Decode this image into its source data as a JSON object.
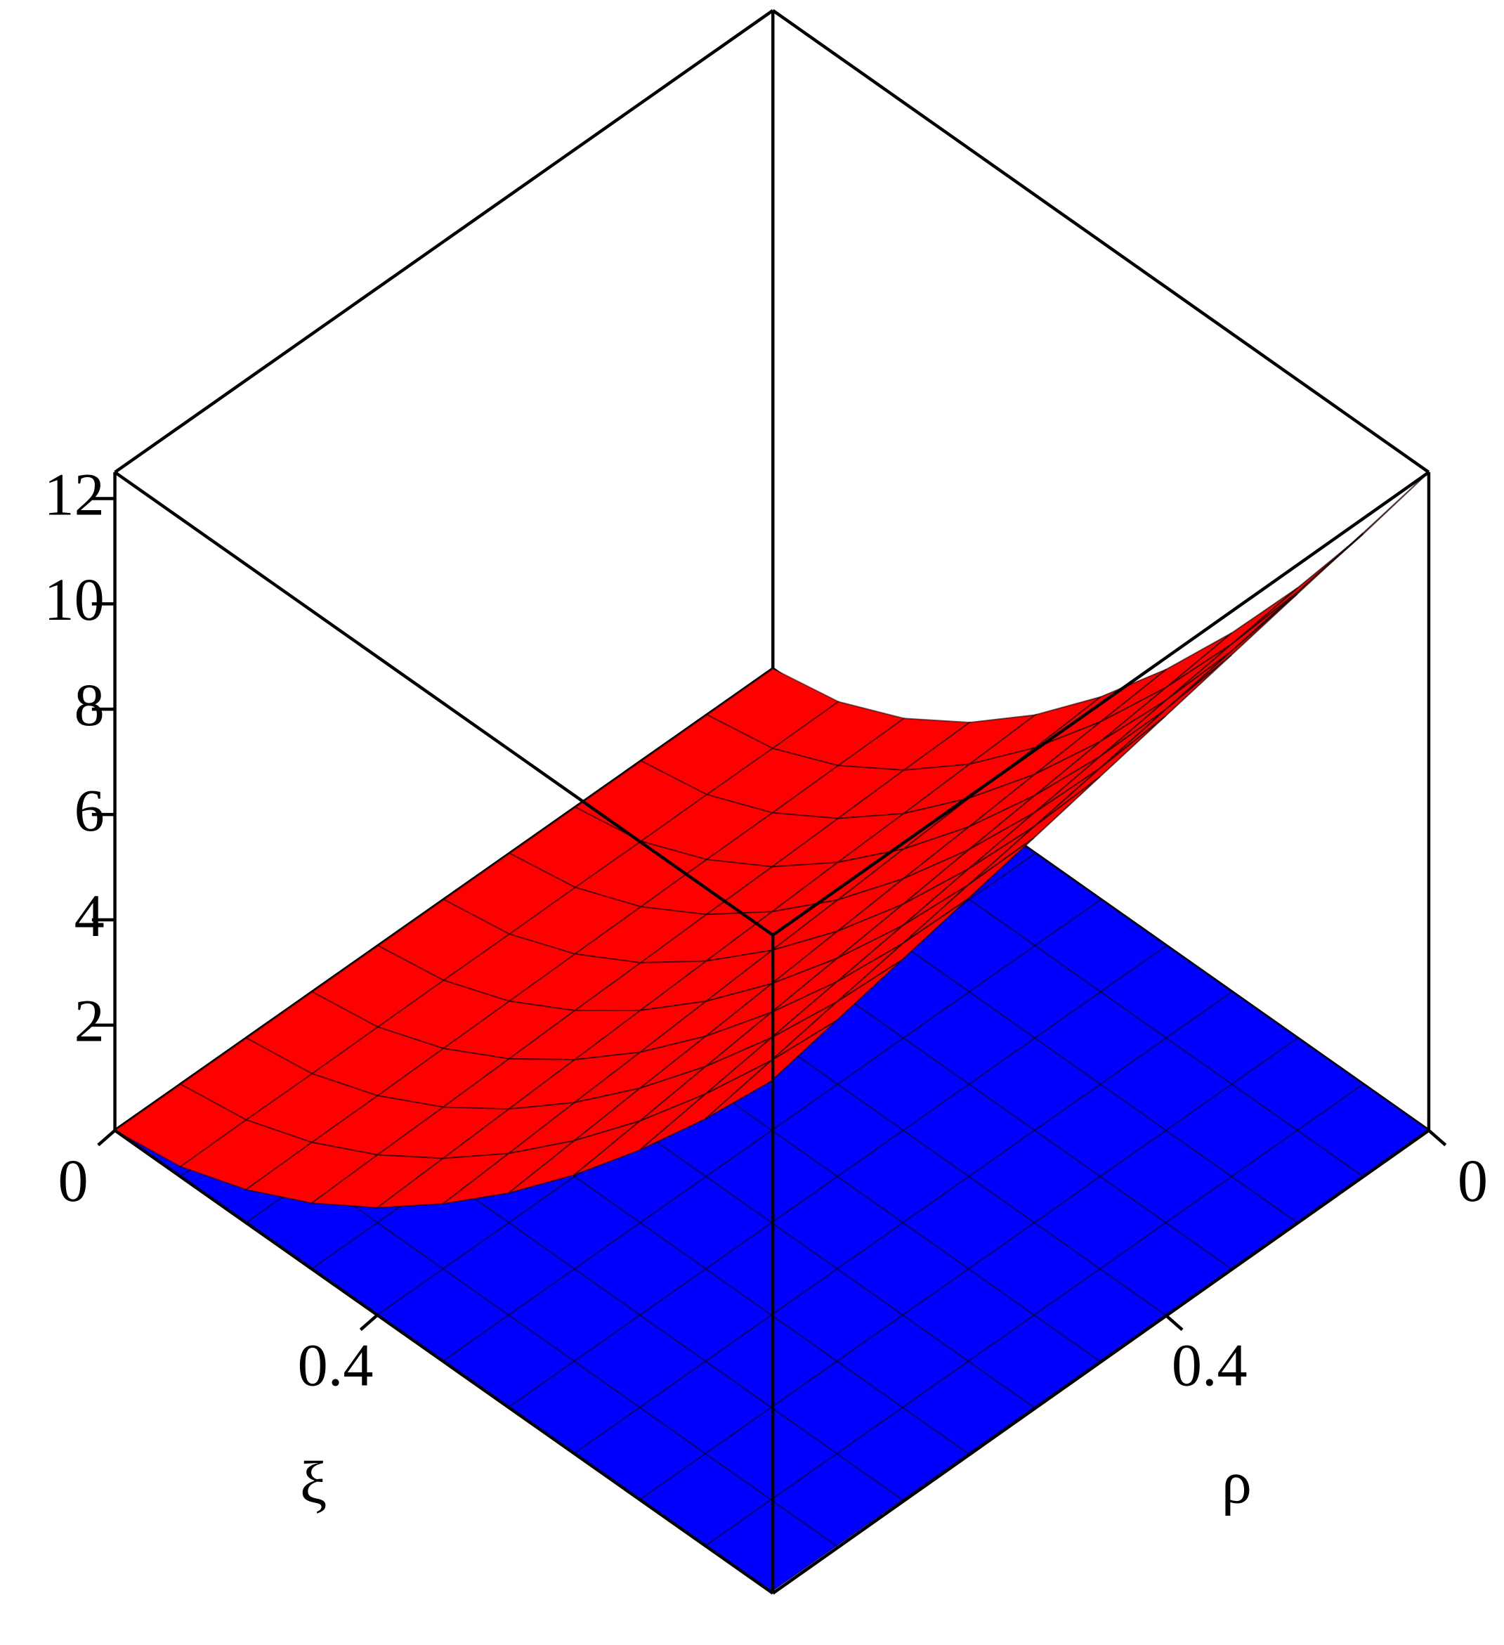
{
  "chart_data": {
    "type": "surface",
    "xlabel": "ξ",
    "ylabel": "ρ",
    "xlim": [
      0,
      1
    ],
    "ylim": [
      0,
      1
    ],
    "zlim": [
      0,
      12.5
    ],
    "xticks": [
      0,
      0.4
    ],
    "yticks": [
      0,
      0.4
    ],
    "zticks": [
      2,
      4,
      6,
      8,
      10,
      12
    ],
    "x": [
      0,
      0.1,
      0.2,
      0.3,
      0.4,
      0.5,
      0.6,
      0.7,
      0.8,
      0.9,
      1
    ],
    "y": [
      0,
      0.1,
      0.2,
      0.3,
      0.4,
      0.5,
      0.6,
      0.7,
      0.8,
      0.9,
      1
    ],
    "surfaces": [
      {
        "color": "#0000ff",
        "z": [
          [
            0,
            0,
            0,
            0,
            0,
            0,
            0,
            0,
            0,
            0,
            0
          ],
          [
            0,
            0,
            0,
            0,
            0,
            0,
            0,
            0,
            0,
            0,
            0
          ],
          [
            0,
            0,
            0,
            0,
            0,
            0,
            0,
            0,
            0,
            0,
            0
          ],
          [
            0,
            0,
            0,
            0,
            0,
            0,
            0,
            0,
            0,
            0,
            0
          ],
          [
            0,
            0,
            0,
            0,
            0,
            0,
            0,
            0,
            0,
            0,
            0
          ],
          [
            0,
            0,
            0,
            0,
            0,
            0,
            0,
            0,
            0,
            0,
            0
          ],
          [
            0,
            0,
            0,
            0,
            0,
            0,
            0,
            0,
            0,
            0,
            0
          ],
          [
            0,
            0,
            0,
            0,
            0,
            0,
            0,
            0,
            0,
            0,
            0
          ],
          [
            0,
            0,
            0,
            0,
            0,
            0,
            0,
            0,
            0,
            0,
            0
          ],
          [
            0,
            0,
            0,
            0,
            0,
            0,
            0,
            0,
            0,
            0,
            0
          ],
          [
            0,
            0,
            0,
            0,
            0,
            0,
            0,
            0,
            0,
            0,
            0
          ]
        ]
      },
      {
        "color": "#ff0000",
        "z": [
          [
            0,
            0,
            0,
            0,
            0,
            0,
            0,
            0,
            0,
            0,
            0
          ],
          [
            0.25,
            0.24,
            0.24,
            0.23,
            0.23,
            0.22,
            0.22,
            0.21,
            0.2,
            0.2,
            0.19
          ],
          [
            0.81,
            0.79,
            0.77,
            0.76,
            0.74,
            0.72,
            0.7,
            0.68,
            0.66,
            0.65,
            0.63
          ],
          [
            1.61,
            1.58,
            1.54,
            1.5,
            1.47,
            1.43,
            1.4,
            1.36,
            1.32,
            1.29,
            1.25
          ],
          [
            2.63,
            2.57,
            2.51,
            2.46,
            2.4,
            2.34,
            2.28,
            2.22,
            2.16,
            2.1,
            2.04
          ],
          [
            3.85,
            3.76,
            3.68,
            3.59,
            3.5,
            3.42,
            3.33,
            3.24,
            3.16,
            3.07,
            2.99
          ],
          [
            5.25,
            5.13,
            5.01,
            4.89,
            4.78,
            4.66,
            4.54,
            4.42,
            4.31,
            4.19,
            4.07
          ],
          [
            6.82,
            6.66,
            6.51,
            6.36,
            6.21,
            6.05,
            5.9,
            5.75,
            5.6,
            5.44,
            5.29
          ],
          [
            8.55,
            8.36,
            8.17,
            7.98,
            7.79,
            7.6,
            7.4,
            7.21,
            7.02,
            6.83,
            6.64
          ],
          [
            10.45,
            10.22,
            9.98,
            9.75,
            9.51,
            9.28,
            9.05,
            8.81,
            8.58,
            8.34,
            8.11
          ],
          [
            12.5,
            12.22,
            11.94,
            11.66,
            11.38,
            11.1,
            10.82,
            10.54,
            10.26,
            9.98,
            9.7
          ]
        ]
      }
    ]
  }
}
